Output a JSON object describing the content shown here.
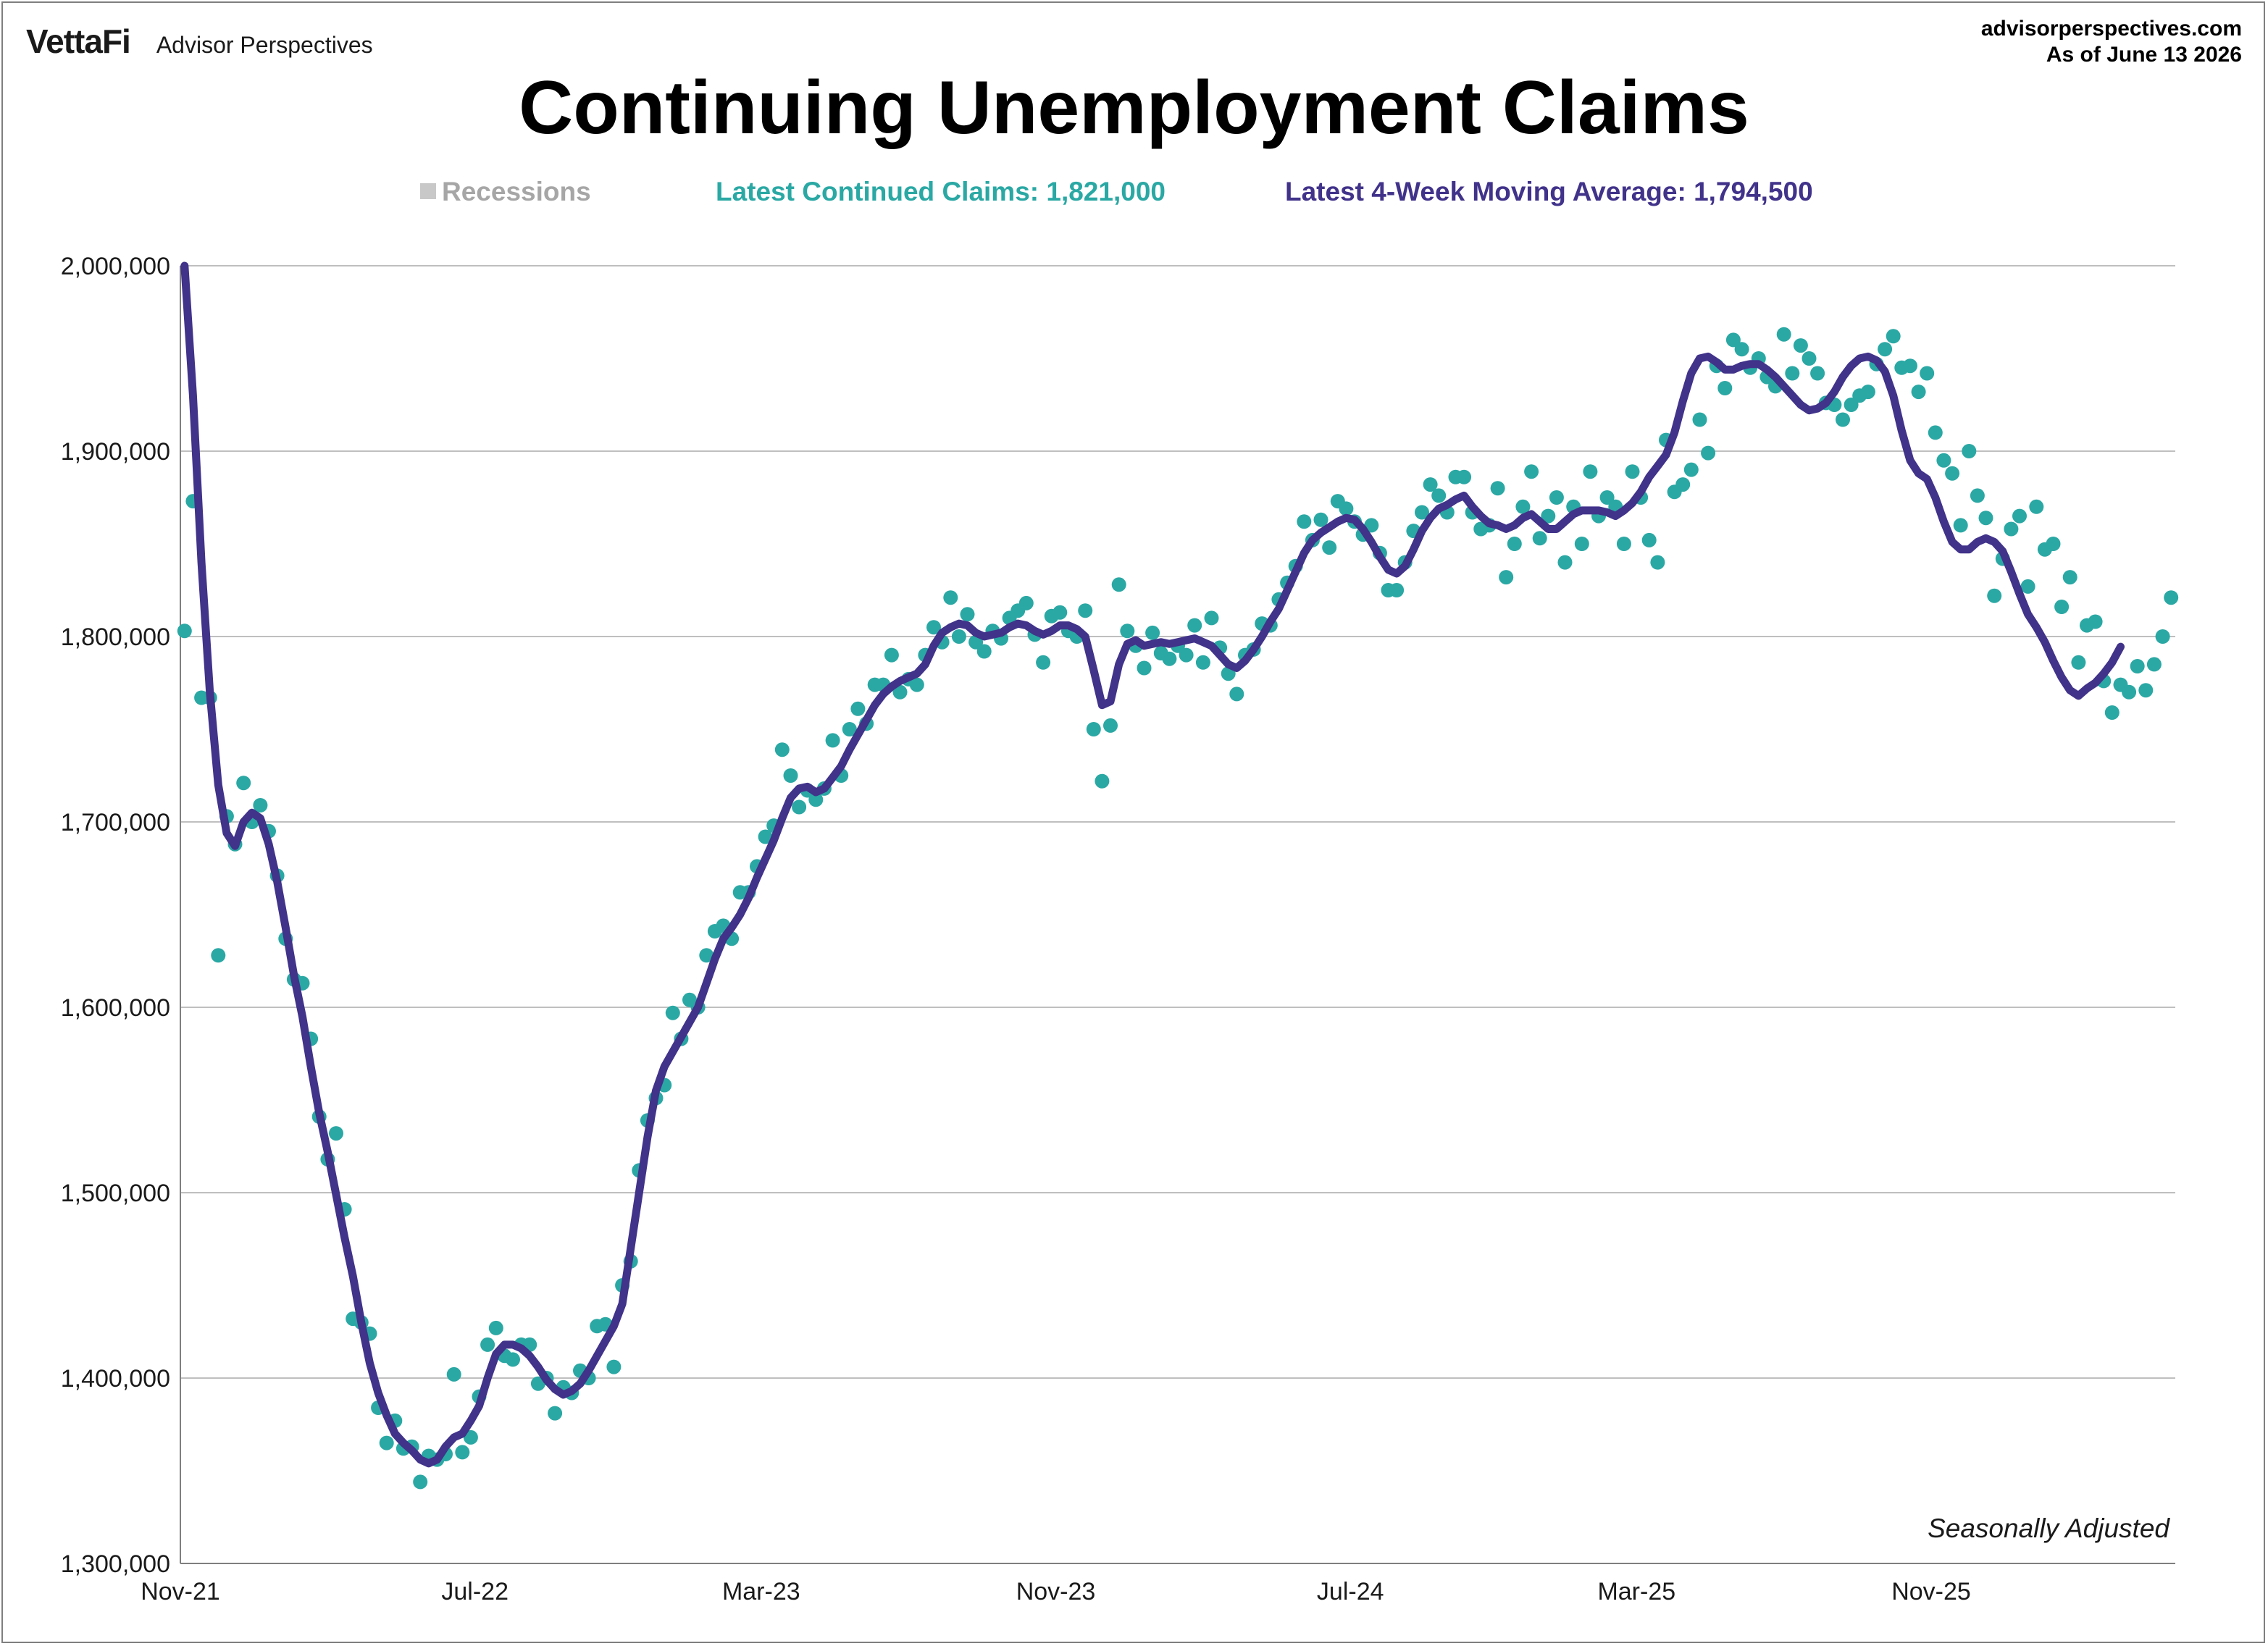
{
  "header": {
    "logo": "VettaFi",
    "logo_sub": "Advisor Perspectives",
    "site": "advisorperspectives.com",
    "as_of": "As of June 13 2026"
  },
  "legend": {
    "recessions": "Recessions",
    "claims": "Latest Continued Claims: 1,821,000",
    "avg": "Latest 4-Week Moving Average: 1,794,500"
  },
  "note": "Seasonally Adjusted",
  "colors": {
    "claims": "#2aa8a4",
    "avg": "#41328a",
    "recession": "#c8c8c8",
    "grid": "#bfbfbf"
  },
  "chart_data": {
    "type": "scatter",
    "title": "Continuing Unemployment Claims",
    "xlabel": "",
    "ylabel": "",
    "x_start": "Nov-21",
    "x_ticks": [
      "Nov-21",
      "Jul-22",
      "Mar-23",
      "Nov-23",
      "Jul-24",
      "Mar-25",
      "Nov-25"
    ],
    "tick_weeks": [
      0,
      35,
      69,
      104,
      139,
      173,
      208
    ],
    "ylim": [
      1300000,
      2000000
    ],
    "y_ticks": [
      1300000,
      1400000,
      1500000,
      1600000,
      1700000,
      1800000,
      1900000,
      2000000
    ],
    "y_tick_labels": [
      "1,300,000",
      "1,400,000",
      "1,500,000",
      "1,600,000",
      "1,700,000",
      "1,800,000",
      "1,900,000",
      "2,000,000"
    ],
    "grid": true,
    "series": [
      {
        "name": "Latest Continued Claims",
        "style": "points",
        "values": [
          1803000,
          1873000,
          1767000,
          1767000,
          1628000,
          1703000,
          1688000,
          1721000,
          1700000,
          1709000,
          1695000,
          1671000,
          1637000,
          1615000,
          1613000,
          1583000,
          1541000,
          1518000,
          1532000,
          1491000,
          1432000,
          1430000,
          1424000,
          1384000,
          1365000,
          1377000,
          1362000,
          1363000,
          1344000,
          1358000,
          1356000,
          1359000,
          1402000,
          1360000,
          1368000,
          1390000,
          1418000,
          1427000,
          1412000,
          1410000,
          1418000,
          1418000,
          1397000,
          1400000,
          1381000,
          1395000,
          1392000,
          1404000,
          1400000,
          1428000,
          1429000,
          1406000,
          1450000,
          1463000,
          1512000,
          1539000,
          1551000,
          1558000,
          1597000,
          1583000,
          1604000,
          1600000,
          1628000,
          1641000,
          1644000,
          1637000,
          1662000,
          1662000,
          1676000,
          1692000,
          1698000,
          1739000,
          1725000,
          1708000,
          1717000,
          1712000,
          1718000,
          1744000,
          1725000,
          1750000,
          1761000,
          1753000,
          1774000,
          1774000,
          1790000,
          1770000,
          1777000,
          1774000,
          1790000,
          1805000,
          1797000,
          1821000,
          1800000,
          1812000,
          1797000,
          1792000,
          1803000,
          1799000,
          1810000,
          1814000,
          1818000,
          1801000,
          1786000,
          1811000,
          1813000,
          1803000,
          1800000,
          1814000,
          1750000,
          1722000,
          1752000,
          1828000,
          1803000,
          1795000,
          1783000,
          1802000,
          1791000,
          1788000,
          1795000,
          1790000,
          1806000,
          1786000,
          1810000,
          1794000,
          1780000,
          1769000,
          1790000,
          1793000,
          1807000,
          1806000,
          1820000,
          1829000,
          1838000,
          1862000,
          1852000,
          1863000,
          1848000,
          1873000,
          1869000,
          1862000,
          1855000,
          1860000,
          1845000,
          1825000,
          1825000,
          1840000,
          1857000,
          1867000,
          1882000,
          1876000,
          1867000,
          1886000,
          1886000,
          1867000,
          1858000,
          1860000,
          1880000,
          1832000,
          1850000,
          1870000,
          1889000,
          1853000,
          1865000,
          1875000,
          1840000,
          1870000,
          1850000,
          1889000,
          1865000,
          1875000,
          1870000,
          1850000,
          1889000,
          1875000,
          1852000,
          1840000,
          1906000,
          1878000,
          1882000,
          1890000,
          1917000,
          1899000,
          1946000,
          1934000,
          1960000,
          1955000,
          1945000,
          1950000,
          1940000,
          1935000,
          1963000,
          1942000,
          1957000,
          1950000,
          1942000,
          1926000,
          1925000,
          1917000,
          1925000,
          1930000,
          1932000,
          1947000,
          1955000,
          1962000,
          1945000,
          1946000,
          1932000,
          1942000,
          1910000,
          1895000,
          1888000,
          1860000,
          1900000,
          1876000,
          1864000,
          1822000,
          1842000,
          1858000,
          1865000,
          1827000,
          1870000,
          1847000,
          1850000,
          1816000,
          1832000,
          1786000,
          1806000,
          1808000,
          1776000,
          1759000,
          1774000,
          1770000,
          1784000,
          1771000,
          1785000,
          1800000,
          1821000
        ]
      },
      {
        "name": "Latest 4-Week Moving Average",
        "style": "line",
        "values": [
          2000000,
          1930000,
          1840000,
          1770000,
          1720000,
          1694000,
          1687000,
          1700000,
          1705000,
          1702000,
          1688000,
          1668000,
          1643000,
          1617000,
          1595000,
          1568000,
          1543000,
          1522000,
          1499000,
          1476000,
          1455000,
          1430000,
          1408000,
          1392000,
          1380000,
          1370000,
          1365000,
          1361000,
          1356000,
          1354000,
          1356000,
          1363000,
          1368000,
          1370000,
          1377000,
          1385000,
          1400000,
          1413000,
          1418000,
          1418000,
          1416000,
          1412000,
          1406000,
          1399000,
          1394000,
          1391000,
          1393000,
          1397000,
          1404000,
          1412000,
          1420000,
          1428000,
          1440000,
          1470000,
          1500000,
          1530000,
          1555000,
          1568000,
          1576000,
          1584000,
          1592000,
          1600000,
          1613000,
          1626000,
          1637000,
          1643000,
          1650000,
          1659000,
          1670000,
          1680000,
          1690000,
          1702000,
          1713000,
          1718000,
          1719000,
          1716000,
          1718000,
          1724000,
          1730000,
          1739000,
          1747000,
          1755000,
          1763000,
          1769000,
          1773000,
          1776000,
          1778000,
          1780000,
          1785000,
          1795000,
          1802000,
          1805000,
          1807000,
          1806000,
          1802000,
          1800000,
          1801000,
          1802000,
          1805000,
          1807000,
          1806000,
          1803000,
          1801000,
          1803000,
          1806000,
          1806000,
          1804000,
          1800000,
          1782000,
          1763000,
          1765000,
          1785000,
          1796000,
          1798000,
          1795000,
          1796000,
          1797000,
          1796000,
          1797000,
          1798000,
          1799000,
          1797000,
          1795000,
          1790000,
          1785000,
          1783000,
          1787000,
          1793000,
          1800000,
          1808000,
          1815000,
          1825000,
          1835000,
          1845000,
          1852000,
          1856000,
          1859000,
          1862000,
          1864000,
          1863000,
          1858000,
          1851000,
          1843000,
          1836000,
          1834000,
          1838000,
          1847000,
          1857000,
          1864000,
          1869000,
          1871000,
          1874000,
          1876000,
          1870000,
          1865000,
          1861000,
          1860000,
          1858000,
          1860000,
          1864000,
          1866000,
          1862000,
          1858000,
          1858000,
          1862000,
          1866000,
          1868000,
          1868000,
          1868000,
          1867000,
          1865000,
          1868000,
          1872000,
          1878000,
          1886000,
          1892000,
          1898000,
          1910000,
          1927000,
          1942000,
          1950000,
          1951000,
          1948000,
          1944000,
          1944000,
          1946000,
          1947000,
          1947000,
          1944000,
          1940000,
          1935000,
          1930000,
          1925000,
          1922000,
          1923000,
          1926000,
          1932000,
          1940000,
          1946000,
          1950000,
          1951000,
          1949000,
          1943000,
          1930000,
          1911000,
          1895000,
          1888000,
          1885000,
          1875000,
          1862000,
          1851000,
          1847000,
          1847000,
          1851000,
          1853000,
          1851000,
          1846000,
          1835000,
          1823000,
          1812000,
          1805000,
          1797000,
          1787000,
          1778000,
          1771000,
          1768000,
          1772000,
          1775000,
          1780000,
          1786000,
          1794500
        ]
      }
    ]
  }
}
